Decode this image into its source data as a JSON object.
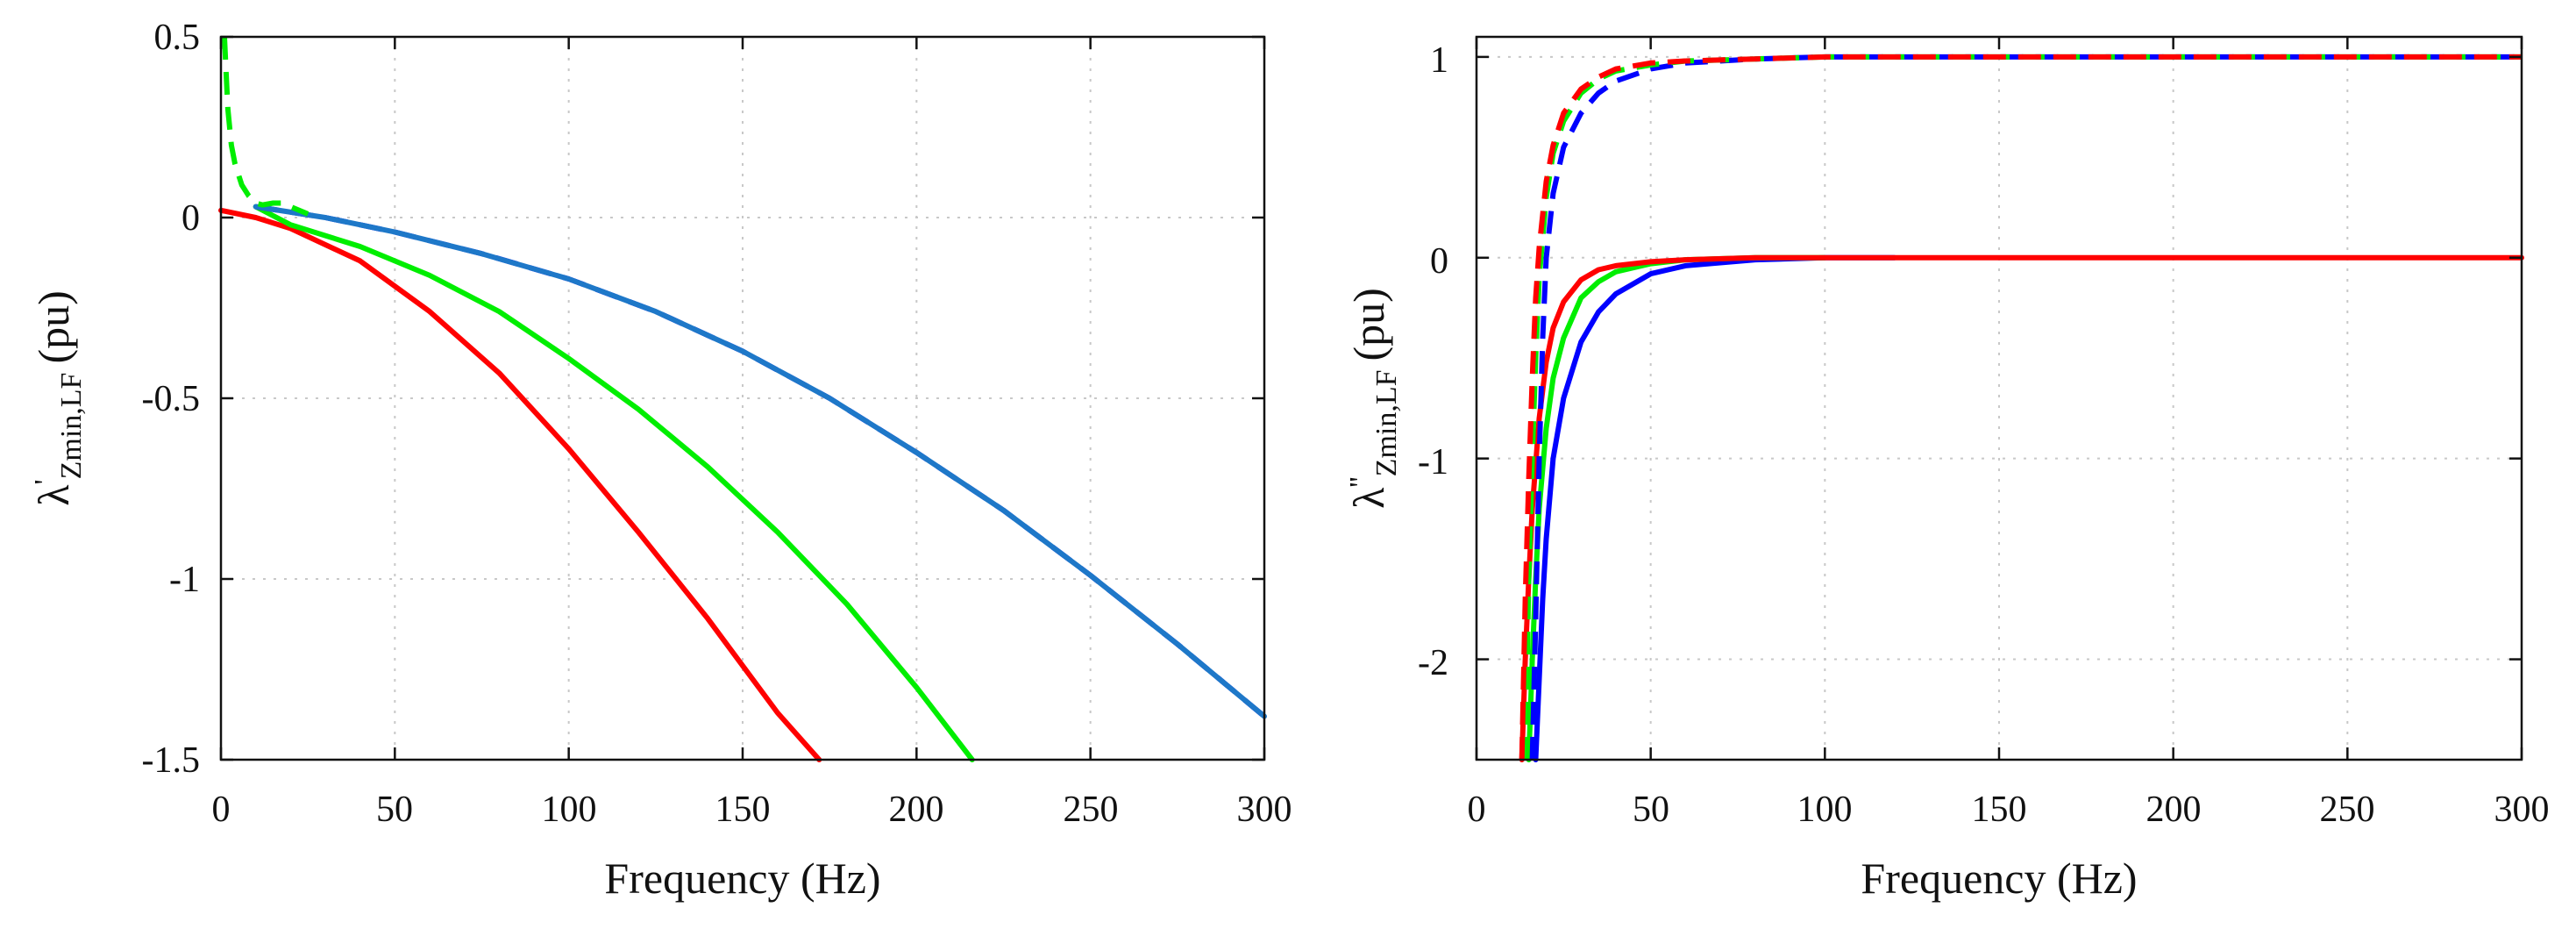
{
  "chart_data": [
    {
      "type": "line",
      "xlabel": "Frequency (Hz)",
      "ylabel": {
        "base": "λ",
        "prime": "'",
        "subscript": "Zmin,LF",
        "unit": "(pu)"
      },
      "xlim": [
        0,
        300
      ],
      "ylim": [
        -1.5,
        0.5
      ],
      "xticks": [
        0,
        50,
        100,
        150,
        200,
        250,
        300
      ],
      "yticks": [
        0.5,
        0,
        -0.5,
        -1,
        -1.5
      ],
      "xtick_labels": [
        "0",
        "50",
        "100",
        "150",
        "200",
        "250",
        "300"
      ],
      "ytick_labels": [
        "0.5",
        "0",
        "-0.5",
        "-1",
        "-1.5"
      ],
      "grid": true,
      "series": [
        {
          "name": "red solid",
          "color": "#ff0000",
          "style": "solid",
          "x": [
            0,
            10,
            20,
            40,
            60,
            80,
            100,
            120,
            140,
            160,
            172
          ],
          "y": [
            0.02,
            0.0,
            -0.03,
            -0.12,
            -0.26,
            -0.43,
            -0.64,
            -0.87,
            -1.11,
            -1.37,
            -1.5
          ]
        },
        {
          "name": "green solid",
          "color": "#00ee00",
          "style": "solid",
          "x": [
            10,
            20,
            40,
            60,
            80,
            100,
            120,
            140,
            160,
            180,
            200,
            216
          ],
          "y": [
            0.03,
            -0.02,
            -0.08,
            -0.16,
            -0.26,
            -0.39,
            -0.53,
            -0.69,
            -0.87,
            -1.07,
            -1.3,
            -1.5
          ]
        },
        {
          "name": "blue dashed",
          "color": "#0000ff",
          "style": "dashed",
          "x": [
            10,
            30,
            50,
            75,
            100,
            125,
            150,
            175,
            200,
            225,
            250,
            275,
            300
          ],
          "y": [
            0.03,
            0.0,
            -0.04,
            -0.1,
            -0.17,
            -0.26,
            -0.37,
            -0.5,
            -0.65,
            -0.81,
            -0.99,
            -1.18,
            -1.38
          ]
        },
        {
          "name": "teal solid",
          "color": "#1e78c8",
          "style": "solid",
          "x": [
            10,
            30,
            50,
            75,
            100,
            125,
            150,
            175,
            200,
            225,
            250,
            275,
            300
          ],
          "y": [
            0.03,
            0.0,
            -0.04,
            -0.1,
            -0.17,
            -0.26,
            -0.37,
            -0.5,
            -0.65,
            -0.81,
            -0.99,
            -1.18,
            -1.38
          ]
        },
        {
          "name": "green dashed",
          "color": "#00ee00",
          "style": "dashed",
          "x": [
            1,
            1.5,
            2,
            3,
            4,
            5,
            6,
            8,
            10,
            12,
            15,
            18,
            20,
            25
          ],
          "y": [
            0.5,
            0.4,
            0.3,
            0.2,
            0.15,
            0.12,
            0.09,
            0.06,
            0.04,
            0.035,
            0.04,
            0.04,
            0.03,
            0.01
          ]
        }
      ]
    },
    {
      "type": "line",
      "xlabel": "Frequency (Hz)",
      "ylabel": {
        "base": "λ",
        "prime": "''",
        "subscript": "Zmin,LF",
        "unit": "(pu)"
      },
      "xlim": [
        0,
        300
      ],
      "ylim": [
        -2.5,
        1.1
      ],
      "xticks": [
        0,
        50,
        100,
        150,
        200,
        250,
        300
      ],
      "yticks": [
        1,
        0,
        -1,
        -2
      ],
      "xtick_labels": [
        "0",
        "50",
        "100",
        "150",
        "200",
        "250",
        "300"
      ],
      "ytick_labels": [
        "1",
        "0",
        "-1",
        "-2"
      ],
      "grid": true,
      "series": [
        {
          "name": "blue solid",
          "color": "#0000ff",
          "style": "solid",
          "x": [
            17,
            18,
            19,
            20,
            22,
            25,
            30,
            35,
            40,
            50,
            60,
            80,
            100,
            120
          ],
          "y": [
            -2.5,
            -2.1,
            -1.7,
            -1.4,
            -1.0,
            -0.7,
            -0.42,
            -0.27,
            -0.18,
            -0.08,
            -0.04,
            -0.01,
            0,
            0
          ]
        },
        {
          "name": "green solid",
          "color": "#00ee00",
          "style": "solid",
          "x": [
            15,
            16,
            17,
            18,
            20,
            22,
            25,
            30,
            35,
            40,
            50,
            60,
            80,
            100
          ],
          "y": [
            -2.5,
            -2.0,
            -1.6,
            -1.25,
            -0.85,
            -0.6,
            -0.4,
            -0.2,
            -0.12,
            -0.07,
            -0.03,
            -0.01,
            0,
            0
          ]
        },
        {
          "name": "red solid",
          "color": "#ff0000",
          "style": "solid",
          "x": [
            13,
            14,
            15,
            16,
            18,
            20,
            22,
            25,
            30,
            35,
            40,
            50,
            60,
            80,
            100,
            300
          ],
          "y": [
            -2.5,
            -2.0,
            -1.6,
            -1.25,
            -0.8,
            -0.52,
            -0.35,
            -0.22,
            -0.11,
            -0.06,
            -0.04,
            -0.02,
            -0.01,
            0,
            0,
            0
          ]
        },
        {
          "name": "blue dashed",
          "color": "#0000ff",
          "style": "dashed",
          "x": [
            16,
            17,
            18,
            19,
            20,
            22,
            25,
            30,
            35,
            40,
            50,
            60,
            80,
            100,
            150,
            300
          ],
          "y": [
            -2.5,
            -1.8,
            -1.0,
            -0.4,
            0.0,
            0.32,
            0.55,
            0.72,
            0.82,
            0.88,
            0.94,
            0.97,
            0.99,
            1.0,
            1.0,
            1.0
          ]
        },
        {
          "name": "green dashed",
          "color": "#00ee00",
          "style": "dashed",
          "x": [
            14,
            15,
            16,
            17,
            18,
            20,
            22,
            25,
            30,
            35,
            40,
            50,
            60,
            80,
            100,
            150,
            300
          ],
          "y": [
            -2.5,
            -1.6,
            -1.0,
            -0.5,
            -0.1,
            0.3,
            0.52,
            0.68,
            0.82,
            0.89,
            0.93,
            0.96,
            0.98,
            0.99,
            1.0,
            1.0,
            1.0
          ]
        },
        {
          "name": "red dashed",
          "color": "#ff0000",
          "style": "dashed",
          "x": [
            13,
            14,
            15,
            16,
            17,
            18,
            20,
            22,
            25,
            30,
            35,
            40,
            50,
            60,
            80,
            100,
            150,
            300
          ],
          "y": [
            -2.5,
            -1.7,
            -1.1,
            -0.6,
            -0.2,
            0.05,
            0.38,
            0.56,
            0.72,
            0.84,
            0.9,
            0.94,
            0.97,
            0.98,
            0.99,
            1.0,
            1.0,
            1.0
          ]
        }
      ]
    }
  ]
}
